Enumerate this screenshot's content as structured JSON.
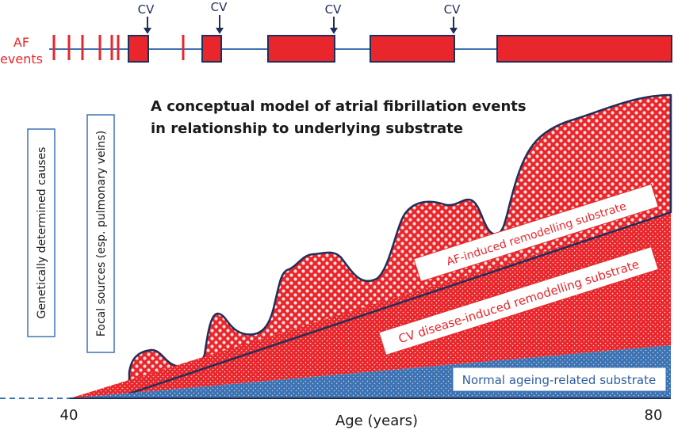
{
  "af_events_label": {
    "line1": "AF",
    "line2": "events"
  },
  "cv_marker_label": "CV",
  "title": {
    "line1": "A conceptual model of atrial fibrillation events",
    "line2": "in relationship to underlying substrate"
  },
  "vertical_labels": {
    "genetic": "Genetically determined causes",
    "focal": "Focal sources (esp. pulmonary veins)"
  },
  "band_labels": {
    "af_induced": "AF-induced remodelling substrate",
    "cv_disease": "CV disease-induced remodelling substrate",
    "normal_ageing": "Normal ageing-related substrate"
  },
  "axis": {
    "start": "40",
    "end": "80",
    "title": "Age (years)"
  },
  "colors": {
    "af_red": "#e8262b",
    "outline_navy": "#1f2f5a",
    "ageing_blue": "#3d73b3",
    "label_blue": "#2e5d9e"
  }
}
